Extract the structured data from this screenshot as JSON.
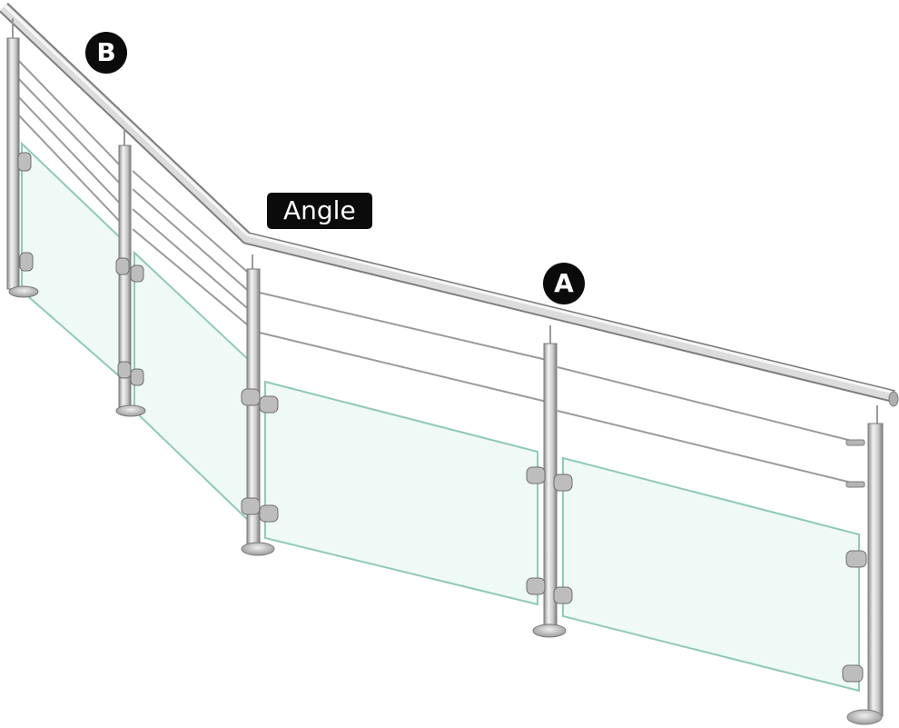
{
  "labels": {
    "marker_b": "B",
    "angle": "Angle",
    "marker_a": "A"
  },
  "colors": {
    "glass_fill": "#eaf7f1",
    "glass_edge": "#8ecbb3",
    "steel_light": "#f3f3f3",
    "steel_mid": "#c9c9c9",
    "steel_dark": "#8d8d8d",
    "cable": "#9a9a9a",
    "label_bg": "#0b0b0b",
    "label_text": "#ffffff"
  },
  "components": [
    "handrail",
    "posts",
    "cables",
    "glass-panels",
    "glass-clamps",
    "base-plates"
  ]
}
